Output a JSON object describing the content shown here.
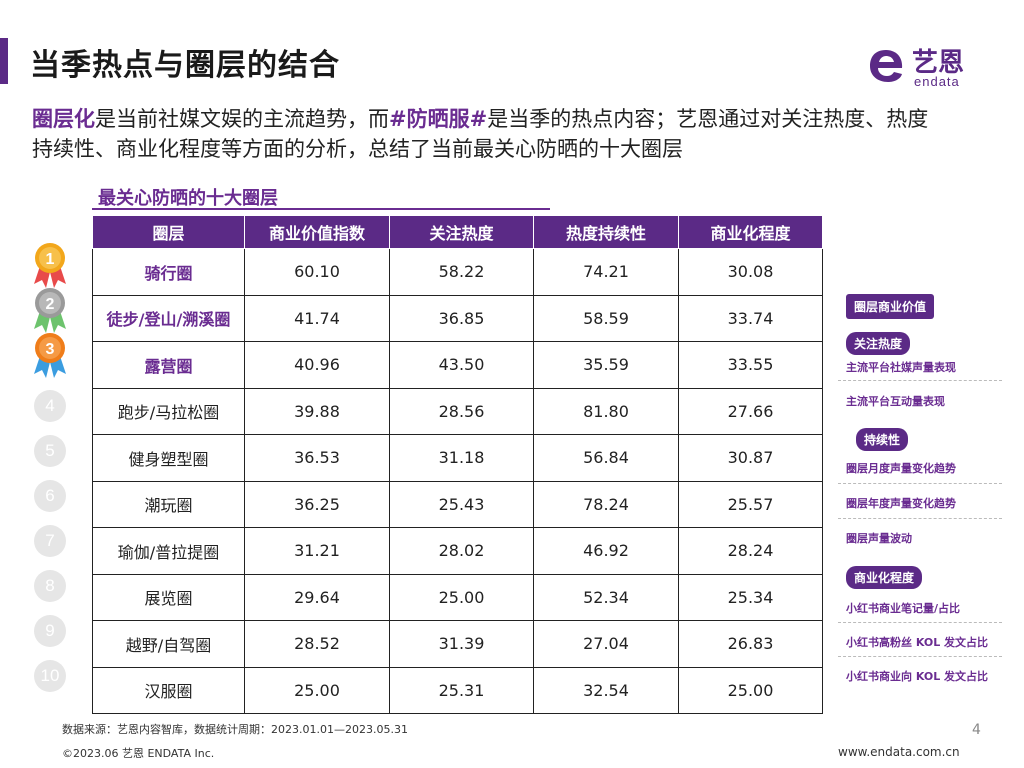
{
  "header": {
    "title": "当季热点与圈层的结合",
    "logo_cn": "艺恩",
    "logo_en": "endata"
  },
  "intro": {
    "part1": "圈层化",
    "part2": "是当前社媒文娱的主流趋势，而",
    "part3": "#防晒服#",
    "part4": "是当季的热点内容；艺恩通过对关注热度、热度持续性、商业化程度等方面的分析，总结了当前最关心防晒的十大圈层"
  },
  "table": {
    "title": "最关心防晒的十大圈层",
    "headers": [
      "圈层",
      "商业价值指数",
      "关注热度",
      "热度持续性",
      "商业化程度"
    ],
    "rows": [
      {
        "rank": "1",
        "name": "骑行圈",
        "values": [
          "60.10",
          "58.22",
          "74.21",
          "30.08"
        ]
      },
      {
        "rank": "2",
        "name": "徒步/登山/溯溪圈",
        "values": [
          "41.74",
          "36.85",
          "58.59",
          "33.74"
        ]
      },
      {
        "rank": "3",
        "name": "露营圈",
        "values": [
          "40.96",
          "43.50",
          "35.59",
          "33.55"
        ]
      },
      {
        "rank": "4",
        "name": "跑步/马拉松圈",
        "values": [
          "39.88",
          "28.56",
          "81.80",
          "27.66"
        ]
      },
      {
        "rank": "5",
        "name": "健身塑型圈",
        "values": [
          "36.53",
          "31.18",
          "56.84",
          "30.87"
        ]
      },
      {
        "rank": "6",
        "name": "潮玩圈",
        "values": [
          "36.25",
          "25.43",
          "78.24",
          "25.57"
        ]
      },
      {
        "rank": "7",
        "name": "瑜伽/普拉提圈",
        "values": [
          "31.21",
          "28.02",
          "46.92",
          "28.24"
        ]
      },
      {
        "rank": "8",
        "name": "展览圈",
        "values": [
          "29.64",
          "25.00",
          "52.34",
          "25.34"
        ]
      },
      {
        "rank": "9",
        "name": "越野/自驾圈",
        "values": [
          "28.52",
          "31.39",
          "27.04",
          "26.83"
        ]
      },
      {
        "rank": "10",
        "name": "汉服圈",
        "values": [
          "25.00",
          "25.31",
          "32.54",
          "25.00"
        ]
      }
    ]
  },
  "legend": {
    "main": "圈层商业价值",
    "groups": [
      {
        "tag": "关注热度",
        "items": [
          "主流平台社媒声量表现",
          "主流平台互动量表现"
        ]
      },
      {
        "tag": "持续性",
        "items": [
          "圈层月度声量变化趋势",
          "圈层年度声量变化趋势",
          "圈层声量波动"
        ]
      },
      {
        "tag": "商业化程度",
        "items": [
          "小红书商业笔记量/占比",
          "小红书高粉丝 KOL 发文占比",
          "小红书商业向 KOL 发文占比"
        ]
      }
    ]
  },
  "footer": {
    "source": "数据来源：艺恩内容智库，数据统计周期：2023.01.01—2023.05.31",
    "copyright": "©2023.06 艺恩 ENDATA Inc.",
    "page": "4",
    "website": "www.endata.com.cn"
  },
  "colors": {
    "brand_purple": "#5b2a86",
    "gold": "#f2a71b",
    "silver": "#9a9a9a",
    "bronze": "#ef7d1a"
  }
}
